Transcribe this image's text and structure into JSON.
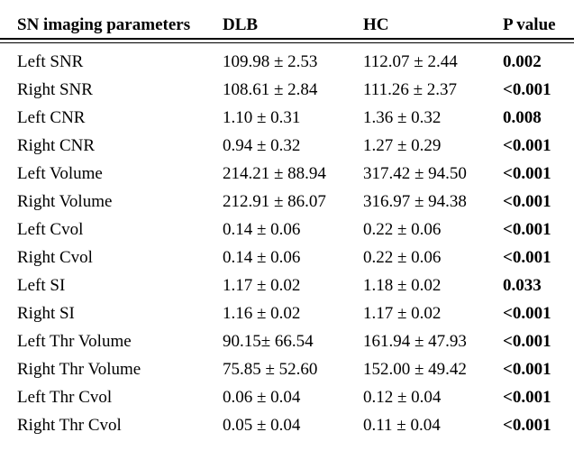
{
  "colors": {
    "text": "#000000",
    "background": "#ffffff",
    "rule": "#000000"
  },
  "table": {
    "columns": [
      "SN imaging parameters",
      "DLB",
      "HC",
      "P value"
    ],
    "rows": [
      {
        "param": "Left SNR",
        "dlb": "109.98 ± 2.53",
        "hc": "112.07 ± 2.44",
        "p": "0.002"
      },
      {
        "param": "Right SNR",
        "dlb": "108.61 ± 2.84",
        "hc": "111.26 ± 2.37",
        "p": "<0.001"
      },
      {
        "param": "Left CNR",
        "dlb": "1.10 ± 0.31",
        "hc": "1.36 ± 0.32",
        "p": "0.008"
      },
      {
        "param": "Right CNR",
        "dlb": "0.94 ± 0.32",
        "hc": "1.27 ± 0.29",
        "p": "<0.001"
      },
      {
        "param": "Left Volume",
        "dlb": "214.21 ± 88.94",
        "hc": "317.42 ± 94.50",
        "p": "<0.001"
      },
      {
        "param": "Right Volume",
        "dlb": "212.91 ± 86.07",
        "hc": "316.97 ± 94.38",
        "p": "<0.001"
      },
      {
        "param": "Left Cvol",
        "dlb": "0.14 ± 0.06",
        "hc": "0.22 ± 0.06",
        "p": "<0.001"
      },
      {
        "param": "Right Cvol",
        "dlb": "0.14 ± 0.06",
        "hc": "0.22 ± 0.06",
        "p": "<0.001"
      },
      {
        "param": "Left SI",
        "dlb": "1.17 ± 0.02",
        "hc": "1.18 ± 0.02",
        "p": "0.033"
      },
      {
        "param": "Right SI",
        "dlb": "1.16 ± 0.02",
        "hc": "1.17 ± 0.02",
        "p": "<0.001"
      },
      {
        "param": "Left Thr Volume",
        "dlb": "90.15± 66.54",
        "hc": "161.94 ± 47.93",
        "p": "<0.001"
      },
      {
        "param": "Right Thr Volume",
        "dlb": "75.85 ± 52.60",
        "hc": "152.00 ± 49.42",
        "p": "<0.001"
      },
      {
        "param": "Left Thr Cvol",
        "dlb": "0.06 ± 0.04",
        "hc": "0.12 ± 0.04",
        "p": "<0.001"
      },
      {
        "param": "Right Thr Cvol",
        "dlb": "0.05 ± 0.04",
        "hc": "0.11 ± 0.04",
        "p": "<0.001"
      }
    ]
  }
}
